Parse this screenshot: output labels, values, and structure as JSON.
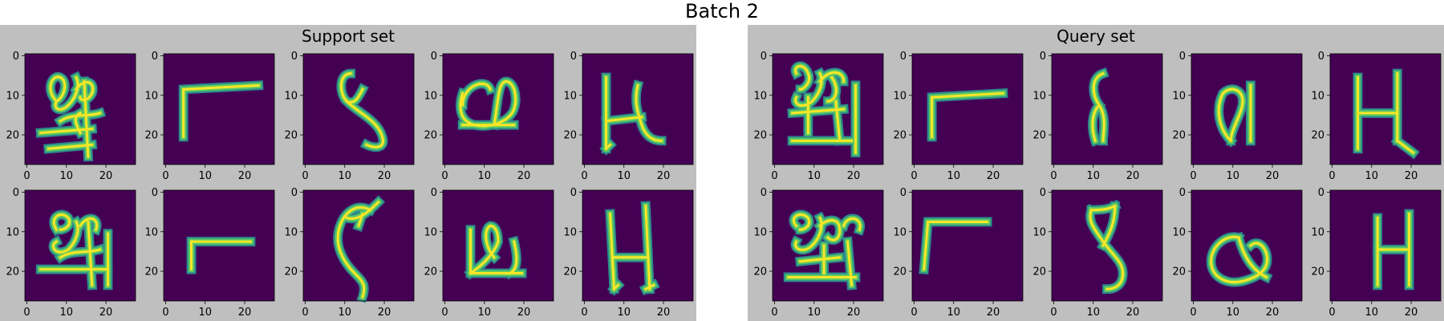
{
  "figure": {
    "title": "Batch 2",
    "colors": {
      "background": "#ffffff",
      "panel": "#bfbfbf",
      "image_bg": "#440154",
      "stroke_outer": "#2c8c8c",
      "stroke_inner": "#5ec962",
      "stroke_core": "#fde725"
    }
  },
  "panels": [
    {
      "title": "Support set",
      "rows": [
        [
          {
            "glyph": "compound_a"
          },
          {
            "glyph": "corner_a"
          },
          {
            "glyph": "s_a"
          },
          {
            "glyph": "eye_a"
          },
          {
            "glyph": "h_a"
          }
        ],
        [
          {
            "glyph": "compound_b"
          },
          {
            "glyph": "corner_b"
          },
          {
            "glyph": "s_b"
          },
          {
            "glyph": "loop_b"
          },
          {
            "glyph": "h_b"
          }
        ]
      ]
    },
    {
      "title": "Query set",
      "rows": [
        [
          {
            "glyph": "compound_c"
          },
          {
            "glyph": "corner_c"
          },
          {
            "glyph": "s_c"
          },
          {
            "glyph": "loop_c"
          },
          {
            "glyph": "h_c"
          }
        ],
        [
          {
            "glyph": "compound_d"
          },
          {
            "glyph": "corner_d"
          },
          {
            "glyph": "s_d"
          },
          {
            "glyph": "loop_d"
          },
          {
            "glyph": "h_d"
          }
        ]
      ]
    }
  ],
  "axes": {
    "x_ticks": [
      "0",
      "10",
      "20"
    ],
    "y_ticks": [
      "0",
      "10",
      "20"
    ]
  }
}
